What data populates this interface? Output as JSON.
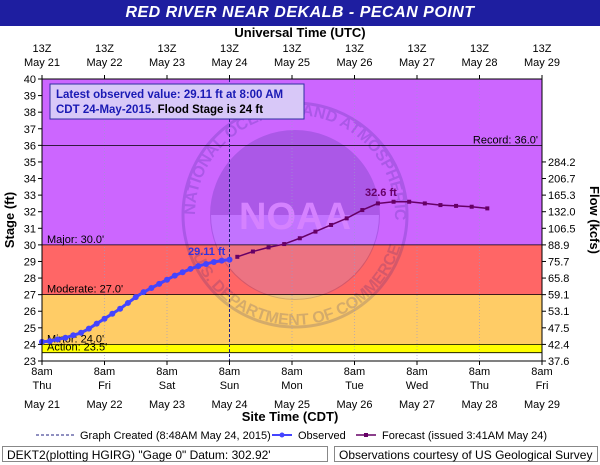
{
  "page": {
    "title": "RED RIVER NEAR DEKALB - PECAN POINT",
    "footer_left": "DEKT2(plotting HGIRG) \"Gage 0\" Datum: 302.92'",
    "footer_right": "Observations courtesy of US Geological Survey"
  },
  "chart_data": {
    "type": "line",
    "title": "RED RIVER NEAR DEKALB - PECAN POINT",
    "top_axis_label": "Universal Time (UTC)",
    "xlabel": "Site Time (CDT)",
    "ylabel": "Stage (ft)",
    "y2label": "Flow (kcfs)",
    "ylim": [
      23,
      40
    ],
    "xlim": [
      "May 21 8am",
      "May 29 8am"
    ],
    "yticks": [
      23,
      24,
      25,
      26,
      27,
      28,
      29,
      30,
      31,
      32,
      33,
      34,
      35,
      36,
      37,
      38,
      39,
      40
    ],
    "top_ticks": [
      {
        "l1": "13Z",
        "l2": "May 21"
      },
      {
        "l1": "13Z",
        "l2": "May 22"
      },
      {
        "l1": "13Z",
        "l2": "May 23"
      },
      {
        "l1": "13Z",
        "l2": "May 24"
      },
      {
        "l1": "13Z",
        "l2": "May 25"
      },
      {
        "l1": "13Z",
        "l2": "May 26"
      },
      {
        "l1": "13Z",
        "l2": "May 27"
      },
      {
        "l1": "13Z",
        "l2": "May 28"
      },
      {
        "l1": "13Z",
        "l2": "May 29"
      }
    ],
    "bottom_ticks": [
      {
        "l1": "8am",
        "l2": "Thu",
        "l3": "May 21"
      },
      {
        "l1": "8am",
        "l2": "Fri",
        "l3": "May 22"
      },
      {
        "l1": "8am",
        "l2": "Sat",
        "l3": "May 23"
      },
      {
        "l1": "8am",
        "l2": "Sun",
        "l3": "May 24"
      },
      {
        "l1": "8am",
        "l2": "Mon",
        "l3": "May 25"
      },
      {
        "l1": "8am",
        "l2": "Tue",
        "l3": "May 26"
      },
      {
        "l1": "8am",
        "l2": "Wed",
        "l3": "May 27"
      },
      {
        "l1": "8am",
        "l2": "Thu",
        "l3": "May 28"
      },
      {
        "l1": "8am",
        "l2": "Fri",
        "l3": "May 29"
      }
    ],
    "flow_ticks": [
      {
        "stage": 23,
        "label": "37.6"
      },
      {
        "stage": 24,
        "label": "42.4"
      },
      {
        "stage": 25,
        "label": "47.5"
      },
      {
        "stage": 26,
        "label": "53.1"
      },
      {
        "stage": 27,
        "label": "59.1"
      },
      {
        "stage": 28,
        "label": "65.8"
      },
      {
        "stage": 29,
        "label": "75.7"
      },
      {
        "stage": 30,
        "label": "88.9"
      },
      {
        "stage": 31,
        "label": "106.5"
      },
      {
        "stage": 32,
        "label": "132.0"
      },
      {
        "stage": 33,
        "label": "165.3"
      },
      {
        "stage": 34,
        "label": "206.7"
      },
      {
        "stage": 35,
        "label": "284.2"
      }
    ],
    "bands": [
      {
        "from": 23,
        "to": 23.5,
        "color": "#ffffff"
      },
      {
        "from": 23.5,
        "to": 24,
        "color": "#ffff00"
      },
      {
        "from": 24,
        "to": 27,
        "color": "#ffcc66"
      },
      {
        "from": 27,
        "to": 30,
        "color": "#ff6666"
      },
      {
        "from": 30,
        "to": 40,
        "color": "#cc66ff"
      }
    ],
    "thresholds": [
      {
        "name": "Record",
        "value": 36.0,
        "label": "Record: 36.0'"
      },
      {
        "name": "Major",
        "value": 30.0,
        "label": "Major: 30.0'"
      },
      {
        "name": "Moderate",
        "value": 27.0,
        "label": "Moderate: 27.0'"
      },
      {
        "name": "Minor",
        "value": 24.0,
        "label": "Minor: 24.0'"
      },
      {
        "name": "Action",
        "value": 23.5,
        "label": "Action: 23.5'"
      }
    ],
    "series": [
      {
        "name": "Observed",
        "color": "#4444ff",
        "x_days": [
          0,
          0.125,
          0.25,
          0.375,
          0.5,
          0.625,
          0.75,
          0.875,
          1.0,
          1.125,
          1.25,
          1.375,
          1.5,
          1.625,
          1.75,
          1.875,
          2.0,
          2.125,
          2.25,
          2.375,
          2.5,
          2.625,
          2.75,
          2.875,
          3.0
        ],
        "y": [
          24.15,
          24.2,
          24.3,
          24.4,
          24.55,
          24.7,
          24.95,
          25.25,
          25.55,
          25.85,
          26.15,
          26.5,
          26.85,
          27.15,
          27.4,
          27.65,
          27.9,
          28.15,
          28.35,
          28.55,
          28.72,
          28.85,
          28.97,
          29.05,
          29.11
        ]
      },
      {
        "name": "Forecast",
        "color": "#660066",
        "x_days": [
          3.125,
          3.375,
          3.625,
          3.875,
          4.125,
          4.375,
          4.625,
          4.875,
          5.125,
          5.375,
          5.625,
          5.875,
          6.125,
          6.375,
          6.625,
          6.875,
          7.125
        ],
        "y": [
          29.28,
          29.6,
          29.85,
          30.05,
          30.4,
          30.8,
          31.2,
          31.6,
          32.1,
          32.5,
          32.6,
          32.6,
          32.5,
          32.4,
          32.35,
          32.3,
          32.2
        ]
      }
    ],
    "annotations": {
      "observed_label": "29.11 ft",
      "forecast_peak_label": "32.6 ft",
      "info_line1": "Latest observed value: 29.11 ft at 8:00 AM",
      "info_line2a": "CDT 24-May-2015",
      "info_line2b": ". Flood Stage is 24 ft"
    },
    "legend": {
      "placement": "bottom",
      "created": "Graph Created (8:48AM May 24, 2015)",
      "observed": "Observed",
      "forecast": "Forecast (issued 3:41AM May 24)"
    },
    "watermark": {
      "agency": "NOAA",
      "ring_text": "NATIONAL OCEANIC AND ATMOSPHERIC ADMINISTRATION",
      "ring_text_lower": "U.S. DEPARTMENT OF COMMERCE"
    }
  }
}
